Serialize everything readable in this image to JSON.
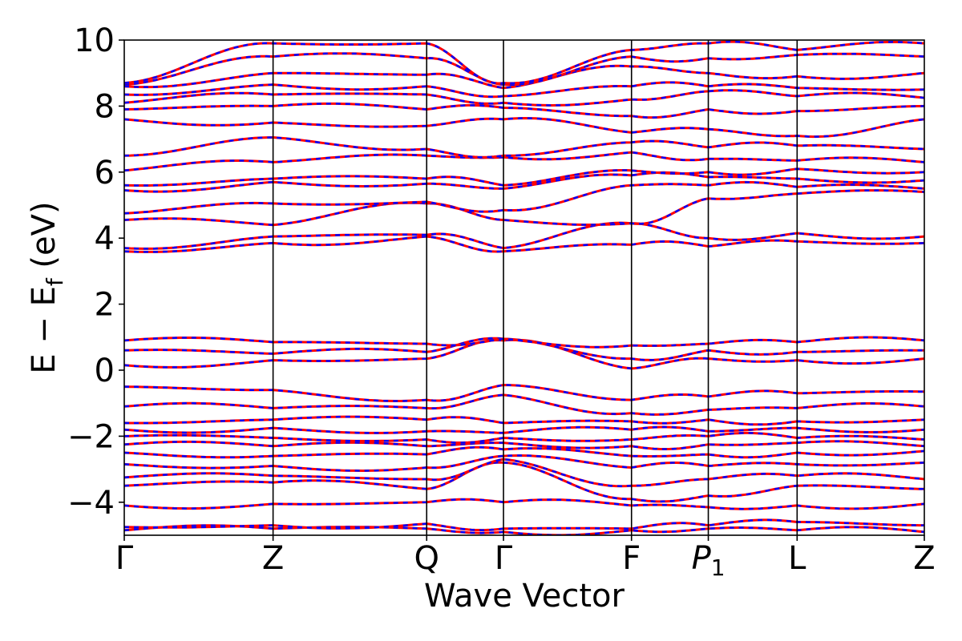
{
  "chart_data": {
    "type": "line",
    "title": "",
    "xlabel": "Wave Vector",
    "ylabel": {
      "prefix": "E − E",
      "sub": "f",
      "suffix": " (eV)"
    },
    "ylim": [
      -5,
      10
    ],
    "yticks": [
      -4,
      -2,
      0,
      2,
      4,
      6,
      8,
      10
    ],
    "ytick_labels": [
      "−4",
      "−2",
      "0",
      "2",
      "4",
      "6",
      "8",
      "10"
    ],
    "xlim": [
      0,
      1
    ],
    "high_symmetry_points": [
      {
        "label": "Γ",
        "x": 0.0
      },
      {
        "label": "Z",
        "x": 0.186
      },
      {
        "label": "Q",
        "x": 0.378
      },
      {
        "label": "Γ",
        "x": 0.474
      },
      {
        "label": "F",
        "x": 0.634
      },
      {
        "label": "P",
        "sub": "1",
        "italic": true,
        "x": 0.73
      },
      {
        "label": "L",
        "x": 0.841
      },
      {
        "label": "Z",
        "x": 1.0
      }
    ],
    "series": [
      {
        "style": "solid",
        "color": "#ff0000"
      },
      {
        "style": "dashed",
        "color": "#0000ff"
      }
    ],
    "bands": [
      [
        -4.85,
        -4.8,
        -4.8,
        -4.9,
        -4.85,
        -4.8,
        -4.85,
        -4.9
      ],
      [
        -4.75,
        -4.7,
        -4.65,
        -4.8,
        -4.8,
        -4.7,
        -4.6,
        -4.7
      ],
      [
        -4.1,
        -4.05,
        -4.0,
        -4.0,
        -4.1,
        -4.15,
        -4.1,
        -4.05
      ],
      [
        -3.5,
        -3.4,
        -3.6,
        -2.8,
        -3.9,
        -3.8,
        -3.5,
        -3.6
      ],
      [
        -3.25,
        -3.2,
        -3.3,
        -2.7,
        -3.5,
        -3.3,
        -3.2,
        -3.3
      ],
      [
        -2.85,
        -2.9,
        -2.95,
        -2.6,
        -2.95,
        -2.9,
        -2.85,
        -2.8
      ],
      [
        -2.5,
        -2.6,
        -2.55,
        -2.4,
        -2.6,
        -2.55,
        -2.5,
        -2.45
      ],
      [
        -2.25,
        -2.3,
        -2.3,
        -2.2,
        -2.3,
        -2.25,
        -2.2,
        -2.3
      ],
      [
        -2.0,
        -2.05,
        -2.1,
        -2.05,
        -2.1,
        -2.0,
        -2.05,
        -2.1
      ],
      [
        -1.8,
        -1.75,
        -1.85,
        -1.9,
        -1.8,
        -1.85,
        -1.75,
        -1.8
      ],
      [
        -1.6,
        -1.5,
        -1.5,
        -1.6,
        -1.55,
        -1.5,
        -1.55,
        -1.5
      ],
      [
        -1.1,
        -1.15,
        -1.15,
        -0.75,
        -1.3,
        -1.2,
        -1.15,
        -1.1
      ],
      [
        -0.5,
        -0.6,
        -0.9,
        -0.45,
        -0.9,
        -0.8,
        -0.7,
        -0.65
      ],
      [
        0.15,
        0.3,
        0.35,
        0.9,
        0.05,
        0.35,
        0.3,
        0.35
      ],
      [
        0.6,
        0.5,
        0.55,
        0.95,
        0.35,
        0.6,
        0.55,
        0.6
      ],
      [
        0.9,
        0.85,
        0.8,
        0.95,
        0.75,
        0.8,
        0.85,
        0.9
      ],
      [
        3.6,
        3.85,
        4.05,
        3.6,
        3.8,
        3.75,
        3.9,
        3.85
      ],
      [
        3.7,
        4.05,
        4.1,
        3.7,
        4.45,
        4.0,
        4.15,
        4.05
      ],
      [
        4.55,
        4.4,
        5.05,
        4.55,
        4.45,
        5.2,
        5.35,
        5.4
      ],
      [
        4.75,
        5.05,
        5.1,
        4.85,
        5.6,
        5.6,
        5.55,
        5.5
      ],
      [
        5.45,
        5.7,
        5.65,
        5.5,
        5.9,
        5.85,
        5.8,
        5.75
      ],
      [
        5.6,
        5.8,
        5.8,
        5.6,
        6.05,
        6.0,
        6.1,
        6.0
      ],
      [
        6.05,
        6.3,
        6.5,
        6.45,
        6.6,
        6.4,
        6.35,
        6.3
      ],
      [
        6.5,
        7.05,
        6.7,
        6.5,
        6.9,
        6.75,
        6.8,
        6.7
      ],
      [
        7.6,
        7.5,
        7.4,
        7.6,
        7.2,
        7.3,
        7.1,
        7.6
      ],
      [
        7.9,
        8.0,
        7.9,
        7.95,
        7.7,
        7.9,
        7.85,
        8.0
      ],
      [
        8.1,
        8.35,
        8.35,
        8.1,
        8.2,
        8.45,
        8.3,
        8.25
      ],
      [
        8.35,
        8.65,
        8.6,
        8.3,
        8.6,
        8.6,
        8.55,
        8.5
      ],
      [
        8.6,
        9.0,
        8.95,
        8.55,
        9.2,
        9.0,
        8.9,
        9.0
      ],
      [
        8.65,
        9.5,
        9.45,
        8.65,
        9.5,
        9.45,
        9.55,
        9.5
      ],
      [
        8.7,
        9.9,
        9.9,
        8.7,
        9.7,
        9.9,
        9.7,
        9.9
      ]
    ]
  }
}
